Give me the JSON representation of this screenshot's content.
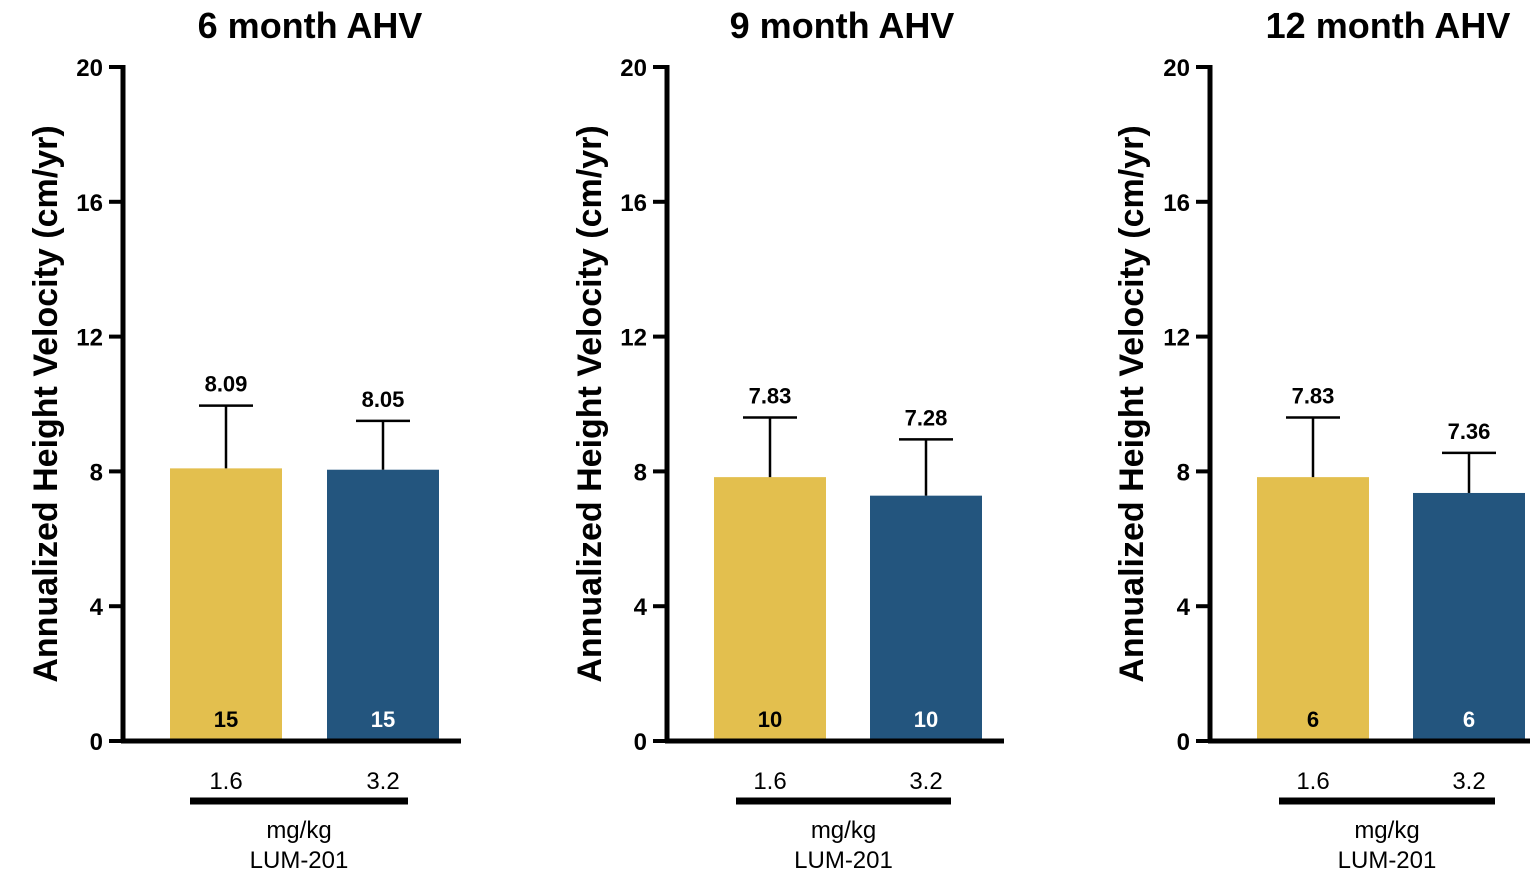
{
  "colors": {
    "low_dose": "#E3BF4E",
    "high_dose": "#23557E",
    "axis": "#000000"
  },
  "chart_data": [
    {
      "type": "bar",
      "title": "6 month AHV",
      "ylabel": "Annualized Height Velocity (cm/yr)",
      "ylim": [
        0,
        20
      ],
      "yticks": [
        "0",
        "4",
        "8",
        "12",
        "16",
        "20"
      ],
      "categories": [
        "1.6",
        "3.2"
      ],
      "values": [
        8.09,
        8.05
      ],
      "value_labels": [
        "8.09",
        "8.05"
      ],
      "error_upper": [
        9.95,
        9.5
      ],
      "n_labels": [
        "15",
        "15"
      ],
      "group_label_line1": "mg/kg",
      "group_label_line2": "LUM-201"
    },
    {
      "type": "bar",
      "title": "9 month AHV",
      "ylabel": "Annualized Height Velocity (cm/yr)",
      "ylim": [
        0,
        20
      ],
      "yticks": [
        "0",
        "4",
        "8",
        "12",
        "16",
        "20"
      ],
      "categories": [
        "1.6",
        "3.2"
      ],
      "values": [
        7.83,
        7.28
      ],
      "value_labels": [
        "7.83",
        "7.28"
      ],
      "error_upper": [
        9.6,
        8.95
      ],
      "n_labels": [
        "10",
        "10"
      ],
      "group_label_line1": "mg/kg",
      "group_label_line2": "LUM-201"
    },
    {
      "type": "bar",
      "title": "12 month AHV",
      "ylabel": "Annualized Height Velocity (cm/yr)",
      "ylim": [
        0,
        20
      ],
      "yticks": [
        "0",
        "4",
        "8",
        "12",
        "16",
        "20"
      ],
      "categories": [
        "1.6",
        "3.2"
      ],
      "values": [
        7.83,
        7.36
      ],
      "value_labels": [
        "7.83",
        "7.36"
      ],
      "error_upper": [
        9.6,
        8.55
      ],
      "n_labels": [
        "6",
        "6"
      ],
      "group_label_line1": "mg/kg",
      "group_label_line2": "LUM-201"
    }
  ]
}
